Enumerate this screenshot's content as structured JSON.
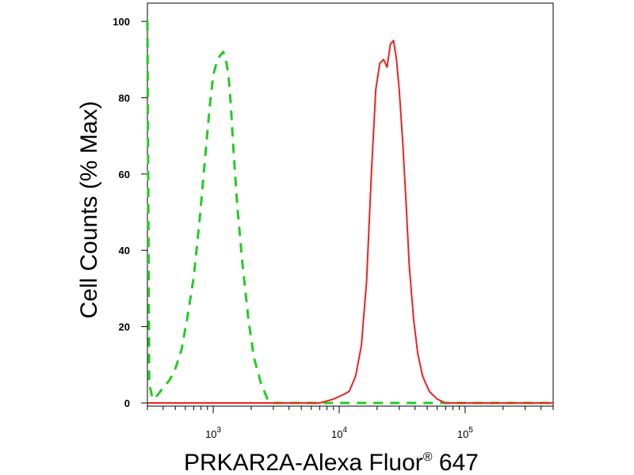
{
  "chart_data": {
    "type": "line",
    "xscale": "log",
    "xlabel": "PRKAR2A-Alexa Fluor",
    "xlabel_super": "®",
    "xlabel_tail": " 647",
    "ylabel": "Cell Counts (% Max)",
    "xlim": [
      300,
      500000
    ],
    "ylim": [
      0,
      103
    ],
    "yticks": [
      {
        "value": 0,
        "label": "0"
      },
      {
        "value": 20,
        "label": "20"
      },
      {
        "value": 40,
        "label": "40"
      },
      {
        "value": 60,
        "label": "60"
      },
      {
        "value": 80,
        "label": "80"
      },
      {
        "value": 100,
        "label": "100"
      }
    ],
    "xticks": [
      {
        "value": 1000,
        "base": "10",
        "exp": "3"
      },
      {
        "value": 10000,
        "base": "10",
        "exp": "4"
      },
      {
        "value": 100000,
        "base": "10",
        "exp": "5"
      }
    ],
    "grid": false,
    "legend": "none",
    "series": [
      {
        "color": "#22cc22",
        "style": "dashed",
        "x": [
          300,
          310,
          330,
          360,
          400,
          450,
          500,
          560,
          620,
          700,
          780,
          860,
          940,
          1000,
          1060,
          1130,
          1200,
          1260,
          1320,
          1380,
          1450,
          1550,
          1700,
          1900,
          2100,
          2400,
          2700,
          3000,
          4000,
          10000,
          30000,
          100000,
          500000
        ],
        "y": [
          100,
          5,
          1,
          2,
          4,
          6,
          9,
          14,
          22,
          33,
          48,
          64,
          78,
          86,
          89,
          91,
          92,
          90,
          86,
          78,
          66,
          52,
          37,
          22,
          12,
          5,
          1,
          0,
          0,
          0,
          0,
          0,
          0
        ]
      },
      {
        "color": "#ee2222",
        "style": "solid",
        "x": [
          300,
          3000,
          7000,
          9000,
          10500,
          12000,
          13500,
          15000,
          16500,
          18000,
          19500,
          21000,
          22500,
          24000,
          25500,
          27000,
          28500,
          30000,
          32000,
          34000,
          36000,
          39000,
          42000,
          46000,
          52000,
          60000,
          70000,
          100000,
          500000
        ],
        "y": [
          0,
          0,
          0,
          1,
          2,
          3,
          7,
          15,
          32,
          60,
          82,
          89,
          90,
          88,
          94,
          95,
          90,
          82,
          68,
          52,
          36,
          22,
          13,
          7,
          3,
          1,
          0,
          0,
          0
        ]
      }
    ]
  }
}
